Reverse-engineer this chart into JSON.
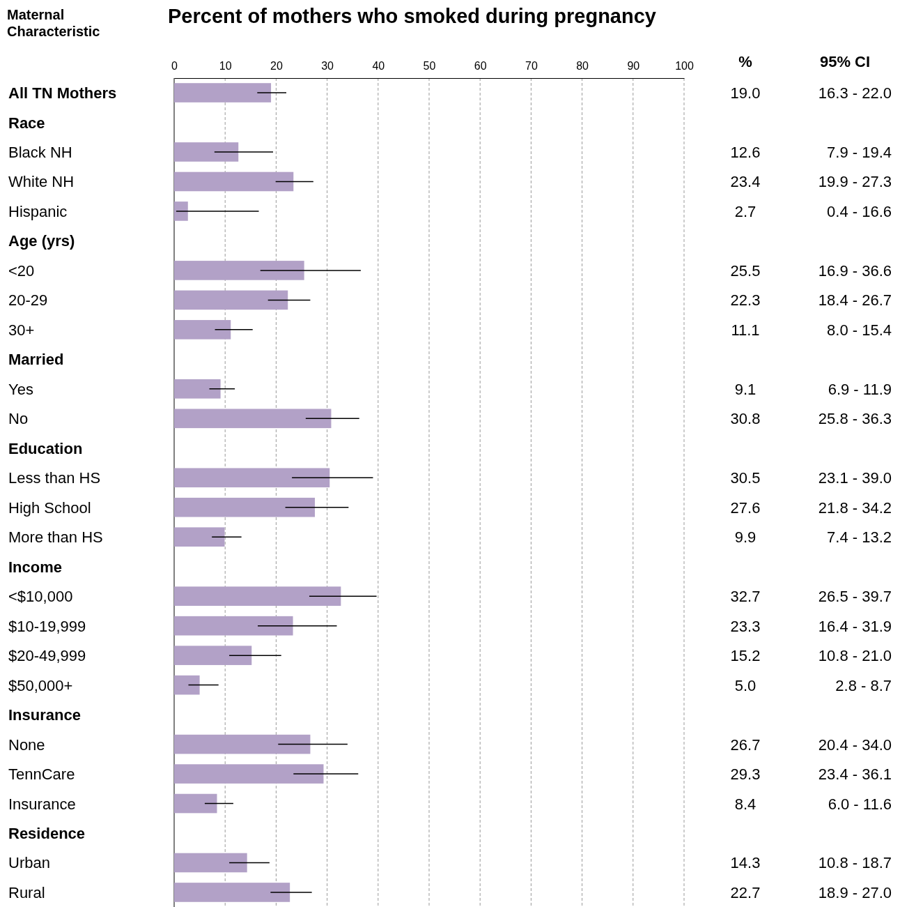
{
  "chart_data": {
    "type": "bar",
    "orientation": "horizontal",
    "title": "Percent of mothers who smoked during pregnancy",
    "ylabel": "Maternal Characteristic",
    "categories": [
      "All TN Mothers",
      "Race",
      "Black NH",
      "White NH",
      "Hispanic",
      "Age (yrs)",
      "<20",
      "20-29",
      "30+",
      "Married",
      "Yes",
      "No",
      "Education",
      "Less than HS",
      "High School",
      "More than HS",
      "Income",
      "<$10,000",
      "$10-19,999",
      "$20-49,999",
      "$50,000+",
      "Insurance",
      "None",
      "TennCare",
      "Insurance",
      "Residence",
      "Urban",
      "Rural"
    ],
    "values": [
      19.0,
      null,
      12.6,
      23.4,
      2.7,
      null,
      25.5,
      22.3,
      11.1,
      null,
      9.1,
      30.8,
      null,
      30.5,
      27.6,
      9.9,
      null,
      32.7,
      23.3,
      15.2,
      5.0,
      null,
      26.7,
      29.3,
      8.4,
      null,
      14.3,
      22.7
    ],
    "value_labels": [
      "19.0",
      null,
      "12.6",
      "23.4",
      "2.7",
      null,
      "25.5",
      "22.3",
      "11.1",
      null,
      "9.1",
      "30.8",
      null,
      "30.5",
      "27.6",
      "9.9",
      null,
      "32.7",
      "23.3",
      "15.2",
      "5.0",
      null,
      "26.7",
      "29.3",
      "8.4",
      null,
      "14.3",
      "22.7"
    ],
    "errors": [
      [
        16.3,
        22.0
      ],
      null,
      [
        7.9,
        19.4
      ],
      [
        19.9,
        27.3
      ],
      [
        0.4,
        16.6
      ],
      null,
      [
        16.9,
        36.6
      ],
      [
        18.4,
        26.7
      ],
      [
        8.0,
        15.4
      ],
      null,
      [
        6.9,
        11.9
      ],
      [
        25.8,
        36.3
      ],
      null,
      [
        23.1,
        39.0
      ],
      [
        21.8,
        34.2
      ],
      [
        7.4,
        13.2
      ],
      null,
      [
        26.5,
        39.7
      ],
      [
        16.4,
        31.9
      ],
      [
        10.8,
        21.0
      ],
      [
        2.8,
        8.7
      ],
      null,
      [
        20.4,
        34.0
      ],
      [
        23.4,
        36.1
      ],
      [
        6.0,
        11.6
      ],
      null,
      [
        10.8,
        18.7
      ],
      [
        18.9,
        27.0
      ]
    ],
    "color": "#b2a1c7",
    "xlim": [
      0,
      100
    ],
    "xticks": [
      0,
      10,
      20,
      30,
      40,
      50,
      60,
      70,
      80,
      90,
      100
    ],
    "grid": "x",
    "annotations": [
      "%",
      "95% CI",
      "16.3 - 22.0",
      "7.9 - 19.4",
      "19.9 - 27.3",
      "0.4 - 16.6",
      "16.9 - 36.6",
      "18.4 - 26.7",
      "8.0 - 15.4",
      "6.9 - 11.9",
      "25.8 - 36.3",
      "23.1 - 39.0",
      "21.8 - 34.2",
      "7.4 - 13.2",
      "26.5 - 39.7",
      "16.4 - 31.9",
      "10.8 - 21.0",
      "2.8 - 8.7",
      "20.4 - 34.0",
      "23.4 - 36.1",
      "6.0 - 11.6",
      "10.8 - 18.7",
      "18.9 - 27.0"
    ]
  }
}
